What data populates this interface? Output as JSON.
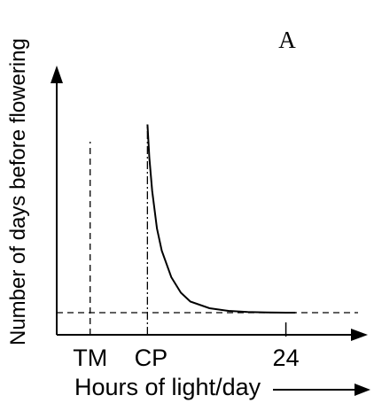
{
  "panel_label": "A",
  "ylabel": "Number of days before flowering",
  "xlabel": "Hours of light/day",
  "x_ticks": [
    "TM",
    "CP",
    "24"
  ],
  "chart_data": {
    "type": "line",
    "series": [
      {
        "x": [
          9.5,
          9.7,
          10,
          10.5,
          11,
          12,
          13,
          14,
          16,
          18,
          20,
          22,
          24,
          25
        ],
        "y": [
          9.5,
          8.0,
          6.5,
          4.8,
          3.8,
          2.6,
          1.9,
          1.5,
          1.2,
          1.08,
          1.03,
          1.01,
          1.0,
          1.0
        ]
      }
    ],
    "reference_lines": [
      {
        "axis": "x",
        "value": 3.5,
        "label": "TM",
        "style": "dashed"
      },
      {
        "axis": "x",
        "value": 9.5,
        "label": "CP",
        "style": "dash-dot"
      },
      {
        "axis": "y",
        "value": 1.0,
        "style": "dashed"
      }
    ],
    "xlim": [
      0,
      31
    ],
    "ylim": [
      0,
      11.6
    ],
    "colors": {
      "line": "#000000"
    }
  }
}
